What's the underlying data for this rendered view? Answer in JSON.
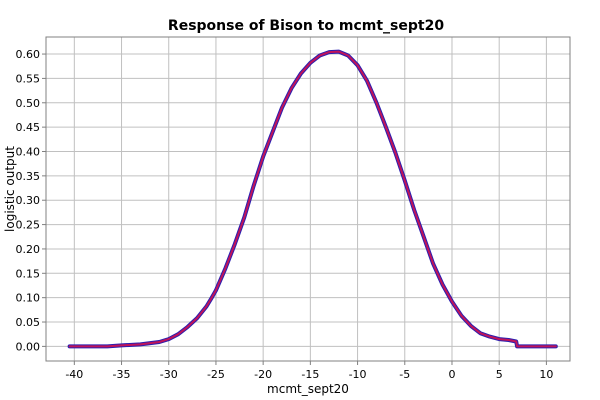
{
  "chart_data": {
    "type": "line",
    "title": "Response of Bison to mcmt_sept20",
    "xlabel": "mcmt_sept20",
    "ylabel": "logistic output",
    "xlim": [
      -43,
      12.5
    ],
    "ylim": [
      -0.03,
      0.635
    ],
    "x_ticks": [
      -40,
      -35,
      -30,
      -25,
      -20,
      -15,
      -10,
      -5,
      0,
      5,
      10
    ],
    "y_ticks": [
      0.0,
      0.05,
      0.1,
      0.15,
      0.2,
      0.25,
      0.3,
      0.35,
      0.4,
      0.45,
      0.5,
      0.55,
      0.6
    ],
    "y_tick_labels": [
      "0.00",
      "0.05",
      "0.10",
      "0.15",
      "0.20",
      "0.25",
      "0.30",
      "0.35",
      "0.40",
      "0.45",
      "0.50",
      "0.55",
      "0.60"
    ],
    "grid": true,
    "series": [
      {
        "color": "#c0145a",
        "underlay_color": "#2a1fb0",
        "x": [
          -40.5,
          -38,
          -36.5,
          -35,
          -33,
          -31,
          -30,
          -29,
          -28,
          -27,
          -26,
          -25.5,
          -25,
          -24,
          -23,
          -22,
          -21,
          -20,
          -19,
          -18,
          -17,
          -16,
          -15,
          -14,
          -13,
          -12,
          -11,
          -10,
          -9,
          -8,
          -7,
          -6,
          -5,
          -4,
          -3,
          -2,
          -1,
          0,
          1,
          2,
          3,
          4,
          5,
          6,
          6.8,
          6.9,
          8,
          9,
          10,
          11
        ],
        "y": [
          0.0,
          0.0,
          0.0,
          0.002,
          0.004,
          0.009,
          0.015,
          0.025,
          0.04,
          0.058,
          0.082,
          0.098,
          0.115,
          0.16,
          0.21,
          0.265,
          0.33,
          0.39,
          0.44,
          0.49,
          0.53,
          0.56,
          0.582,
          0.597,
          0.604,
          0.605,
          0.597,
          0.577,
          0.545,
          0.5,
          0.45,
          0.398,
          0.34,
          0.28,
          0.225,
          0.17,
          0.127,
          0.092,
          0.063,
          0.042,
          0.027,
          0.02,
          0.015,
          0.013,
          0.01,
          0.0,
          0.0,
          0.0,
          0.0,
          0.0
        ]
      }
    ]
  }
}
